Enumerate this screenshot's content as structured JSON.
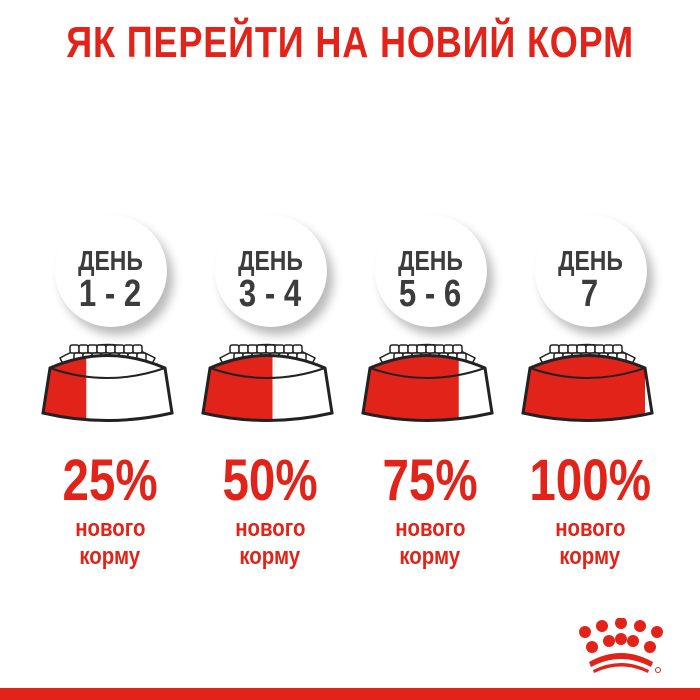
{
  "title": "ЯК ПЕРЕЙТИ НА НОВИЙ КОРМ",
  "steps": [
    {
      "day_label": "ДЕНЬ",
      "days": "1 - 2",
      "percent": "25%",
      "new_fraction": 0.25,
      "line1": "нового",
      "line2": "корму"
    },
    {
      "day_label": "ДЕНЬ",
      "days": "3 - 4",
      "percent": "50%",
      "new_fraction": 0.5,
      "line1": "нового",
      "line2": "корму"
    },
    {
      "day_label": "ДЕНЬ",
      "days": "5 - 6",
      "percent": "75%",
      "new_fraction": 0.75,
      "line1": "нового",
      "line2": "корму"
    },
    {
      "day_label": "ДЕНЬ",
      "days": "7",
      "percent": "100%",
      "new_fraction": 1.0,
      "line1": "нового",
      "line2": "корму"
    }
  ],
  "colors": {
    "accent": "#e2231a",
    "day_text": "#3c3c3c"
  },
  "logo": "royal-canin-crown"
}
